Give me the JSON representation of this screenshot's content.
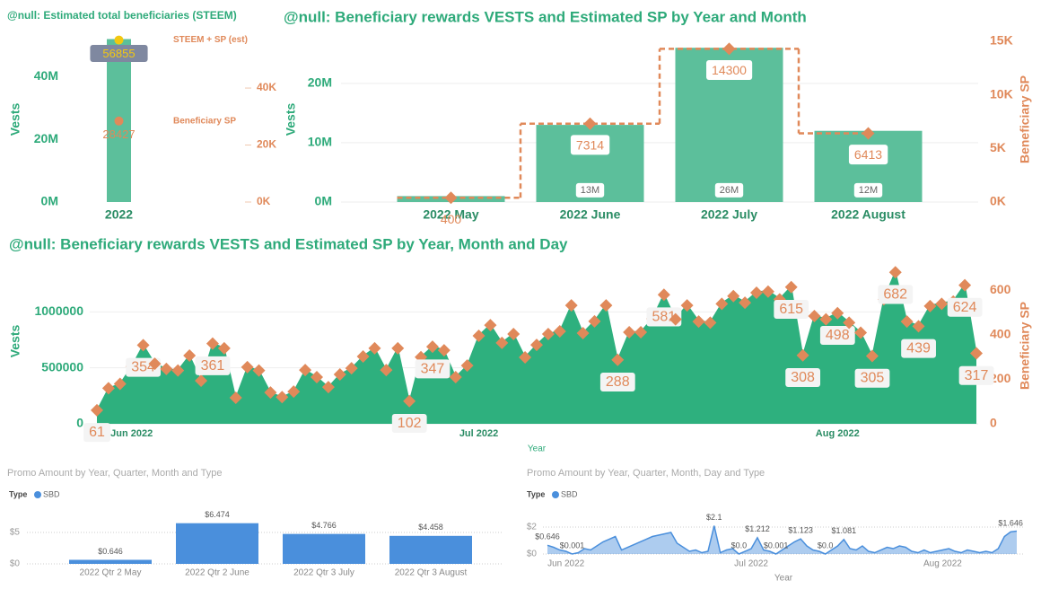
{
  "chart_data": [
    {
      "type": "bar",
      "title": "@null: Estimated total beneficiaries (STEEM)",
      "categories": [
        "2022"
      ],
      "y_label": "Vests",
      "ylim": [
        0,
        53000000
      ],
      "yticks": [
        {
          "value": 0,
          "label": "0M"
        },
        {
          "value": 20000000,
          "label": "20M"
        },
        {
          "value": 40000000,
          "label": "40M"
        }
      ],
      "y2lim": [
        0,
        58300
      ],
      "y2ticks": [
        {
          "value": 0,
          "label": "0K"
        },
        {
          "value": 20000,
          "label": "20K"
        },
        {
          "value": 40000,
          "label": "40K"
        }
      ],
      "grid": false,
      "series": [
        {
          "color": "#5cbf9b",
          "values": [
            52000000
          ]
        },
        {
          "name": "STEEM + SP (est)",
          "type": "scatter",
          "axis": "y2",
          "marker": "circle",
          "color": "#f2c811",
          "values": [
            56855
          ],
          "data_labels": true
        },
        {
          "name": "Beneficiary SP",
          "type": "scatter",
          "axis": "y2",
          "marker": "circle",
          "color": "#e0895a",
          "values": [
            28427
          ],
          "data_labels": true
        }
      ]
    },
    {
      "type": "bar",
      "title": "@null: Beneficiary rewards VESTS and Estimated SP by Year and Month",
      "categories": [
        "2022 May",
        "2022 June",
        "2022 July",
        "2022 August"
      ],
      "y_label": "Vests",
      "y2_label": "Beneficiary SP",
      "ylim": [
        0,
        28000000
      ],
      "yticks": [
        {
          "value": 0,
          "label": "0M"
        },
        {
          "value": 10000000,
          "label": "10M"
        },
        {
          "value": 20000000,
          "label": "20M"
        }
      ],
      "y2lim": [
        0,
        15500
      ],
      "y2ticks": [
        {
          "value": 0,
          "label": "0K"
        },
        {
          "value": 5000,
          "label": "5K"
        },
        {
          "value": 10000,
          "label": "10K"
        },
        {
          "value": 15000,
          "label": "15K"
        }
      ],
      "grid": true,
      "series": [
        {
          "color": "#5cbf9b",
          "values": [
            1000000,
            13000000,
            26000000,
            12000000
          ],
          "value_labels": [
            null,
            "13M",
            "26M",
            "12M"
          ]
        },
        {
          "type": "line",
          "step": true,
          "dashed": true,
          "axis": "y2",
          "marker": "diamond",
          "color": "#e0895a",
          "values": [
            400,
            7314,
            14300,
            6413
          ],
          "data_labels": true
        }
      ]
    },
    {
      "type": "area",
      "title": "@null: Beneficiary rewards VESTS and Estimated SP by Year, Month and Day",
      "categories": [
        null,
        null,
        null,
        "Jun 2022",
        null,
        null,
        null,
        null,
        null,
        null,
        null,
        null,
        null,
        null,
        null,
        null,
        null,
        null,
        null,
        null,
        null,
        null,
        null,
        null,
        null,
        null,
        null,
        null,
        null,
        null,
        null,
        null,
        null,
        "Jul 2022",
        null,
        null,
        null,
        null,
        null,
        null,
        null,
        null,
        null,
        null,
        null,
        null,
        null,
        null,
        null,
        null,
        null,
        null,
        null,
        null,
        null,
        null,
        null,
        null,
        null,
        null,
        null,
        null,
        null,
        null,
        "Aug 2022",
        null,
        null,
        null,
        null,
        null,
        null,
        null,
        null,
        null,
        null,
        null,
        null
      ],
      "x_label": "Year",
      "y_label": "Vests",
      "y2_label": "Beneficiary SP",
      "ylim": [
        0,
        1380000
      ],
      "yticks": [
        0,
        500000,
        1000000
      ],
      "y2lim": [
        0,
        695
      ],
      "y2ticks": [
        0,
        200,
        400,
        600
      ],
      "grid": true,
      "series": [
        {
          "color": "#2eb07e",
          "values": [
            122000,
            320000,
            360000,
            516000,
            708000,
            540000,
            494000,
            480000,
            614000,
            388000,
            722000,
            680000,
            234000,
            510000,
            480000,
            282000,
            240000,
            290000,
            484000,
            420000,
            330000,
            444000,
            500000,
            606000,
            680000,
            484000,
            680000,
            204000,
            600000,
            694000,
            662000,
            420000,
            524000,
            792000,
            888000,
            728000,
            808000,
            598000,
            710000,
            808000,
            832000,
            1066000,
            816000,
            922000,
            1066000,
            576000,
            824000,
            824000,
            946000,
            1162000,
            940000,
            1066000,
            920000,
            910000,
            1080000,
            1150000,
            1090000,
            1180000,
            1190000,
            1120000,
            1230000,
            616000,
            970000,
            940000,
            996000,
            910000,
            820000,
            610000,
            1120000,
            1364000,
            920000,
            878000,
            1060000,
            1080000,
            1100000,
            1248000,
            634000
          ]
        },
        {
          "type": "scatter",
          "axis": "y2",
          "marker": "diamond",
          "color": "#e0895a",
          "values": [
            61,
            160,
            180,
            258,
            354,
            270,
            247,
            240,
            307,
            194,
            361,
            340,
            117,
            255,
            240,
            141,
            120,
            145,
            242,
            210,
            165,
            222,
            250,
            303,
            340,
            242,
            340,
            102,
            300,
            347,
            331,
            210,
            262,
            396,
            444,
            364,
            404,
            299,
            355,
            404,
            416,
            533,
            408,
            461,
            533,
            288,
            412,
            412,
            473,
            581,
            470,
            533,
            460,
            455,
            540,
            575,
            545,
            590,
            595,
            560,
            615,
            308,
            485,
            470,
            498,
            455,
            410,
            305,
            560,
            682,
            460,
            439,
            530,
            540,
            550,
            624,
            317
          ],
          "value_labels": [
            "61",
            null,
            null,
            null,
            "354",
            null,
            null,
            null,
            null,
            null,
            "361",
            null,
            null,
            null,
            null,
            null,
            null,
            null,
            null,
            null,
            null,
            null,
            null,
            null,
            null,
            null,
            null,
            "102",
            null,
            "347",
            null,
            null,
            null,
            null,
            null,
            null,
            null,
            null,
            null,
            null,
            null,
            null,
            null,
            null,
            null,
            "288",
            null,
            null,
            null,
            "581",
            null,
            null,
            null,
            null,
            null,
            null,
            null,
            null,
            null,
            null,
            "615",
            "308",
            null,
            null,
            "498",
            null,
            null,
            "305",
            null,
            "682",
            null,
            "439",
            null,
            null,
            null,
            "624",
            "317"
          ]
        }
      ]
    },
    {
      "type": "bar",
      "title": "Promo Amount by Year, Quarter, Month and Type",
      "legend_title": "Type",
      "categories": [
        "2022 Qtr 2 May",
        "2022 Qtr 2 June",
        "2022 Qtr 3 July",
        "2022 Qtr 3 August"
      ],
      "ylim": [
        0,
        6.86
      ],
      "yticks": [
        {
          "value": 0,
          "label": "$0"
        },
        {
          "value": 5,
          "label": "$5"
        }
      ],
      "grid": true,
      "series": [
        {
          "name": "SBD",
          "color": "#4a8fdc",
          "values": [
            0.646,
            6.474,
            4.766,
            4.458
          ],
          "value_labels": [
            "$0.646",
            "$6.474",
            "$4.766",
            "$4.458"
          ]
        }
      ]
    },
    {
      "type": "area",
      "title": "Promo Amount by Year, Quarter, Month, Day and Type",
      "legend_title": "Type",
      "categories": [
        null,
        null,
        null,
        "Jun 2022",
        null,
        null,
        null,
        null,
        null,
        null,
        null,
        null,
        null,
        null,
        null,
        null,
        null,
        null,
        null,
        null,
        null,
        null,
        null,
        null,
        null,
        null,
        null,
        null,
        null,
        null,
        null,
        null,
        null,
        "Jul 2022",
        null,
        null,
        null,
        null,
        null,
        null,
        null,
        null,
        null,
        null,
        null,
        null,
        null,
        null,
        null,
        null,
        null,
        null,
        null,
        null,
        null,
        null,
        null,
        null,
        null,
        null,
        null,
        null,
        null,
        null,
        "Aug 2022",
        null,
        null,
        null,
        null,
        null,
        null,
        null,
        null,
        null,
        null,
        null,
        null
      ],
      "x_label": "Year",
      "ylim": [
        0,
        2.27
      ],
      "yticks": [
        {
          "value": 0,
          "label": "$0"
        },
        {
          "value": 2,
          "label": "$2"
        }
      ],
      "grid": true,
      "series": [
        {
          "name": "SBD",
          "color": "#4a8fdc",
          "values": [
            0.646,
            0.5,
            0.3,
            0.2,
            0.001,
            0.1,
            0.4,
            0.3,
            0.6,
            0.9,
            1.1,
            1.3,
            0.3,
            0.5,
            0.7,
            0.9,
            1.1,
            1.3,
            1.4,
            1.5,
            1.6,
            0.8,
            0.5,
            0.2,
            0.3,
            0.1,
            0.2,
            2.1,
            0.1,
            0.3,
            0.4,
            0.001,
            0.2,
            0.4,
            1.212,
            0.3,
            0.2,
            0.001,
            0.3,
            0.6,
            0.9,
            1.123,
            0.6,
            0.3,
            0.2,
            0.001,
            0.3,
            0.6,
            1.081,
            0.4,
            0.3,
            0.6,
            0.2,
            0.1,
            0.3,
            0.5,
            0.4,
            0.6,
            0.5,
            0.2,
            0.1,
            0.3,
            0.1,
            0.2,
            0.3,
            0.4,
            0.2,
            0.1,
            0.3,
            0.2,
            0.1,
            0.2,
            0.1,
            0.4,
            1.3,
            1.646,
            1.7
          ],
          "value_labels": [
            "$0.646",
            null,
            null,
            null,
            "$0.001",
            null,
            null,
            null,
            null,
            null,
            null,
            null,
            null,
            null,
            null,
            null,
            null,
            null,
            null,
            null,
            null,
            null,
            null,
            null,
            null,
            null,
            null,
            "$2.1",
            null,
            null,
            null,
            "$0.0",
            null,
            null,
            "$1.212",
            null,
            null,
            "$0.001",
            null,
            null,
            null,
            "$1.123",
            null,
            null,
            null,
            "$0.0",
            null,
            null,
            "$1.081",
            null,
            null,
            null,
            null,
            null,
            null,
            null,
            null,
            null,
            null,
            null,
            null,
            null,
            null,
            null,
            null,
            null,
            null,
            null,
            null,
            null,
            null,
            null,
            null,
            null,
            null,
            "$1.646",
            null
          ]
        }
      ]
    }
  ]
}
